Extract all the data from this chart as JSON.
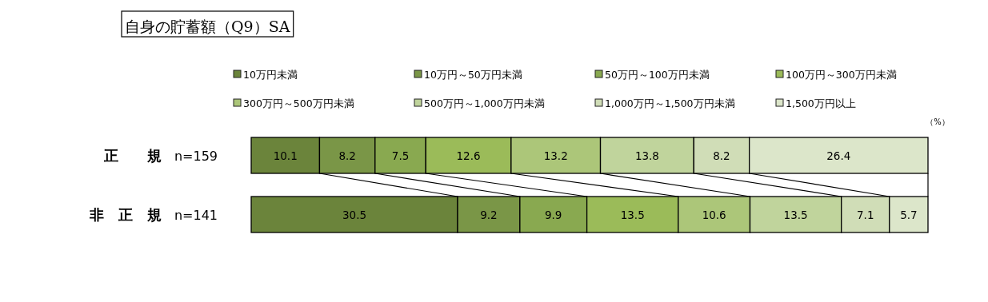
{
  "chart_data": {
    "type": "bar",
    "orientation": "horizontal",
    "stacked": true,
    "title": "自身の貯蓄額（Q9）SA",
    "categories": [
      "**正　　規**　n=159",
      "**非　正　規**　n=141"
    ],
    "series": [
      {
        "name": "10万円未満",
        "color": "#6b843b",
        "values": [
          10.1,
          30.5
        ]
      },
      {
        "name": "10万円～50万円未満",
        "color": "#7a9647",
        "values": [
          8.2,
          9.2
        ]
      },
      {
        "name": "50万円～100万円未満",
        "color": "#89a950",
        "values": [
          7.5,
          9.9
        ]
      },
      {
        "name": "100万円～300万円未満",
        "color": "#9bbb59",
        "values": [
          12.6,
          13.5
        ]
      },
      {
        "name": "300万円～500万円未満",
        "color": "#acc679",
        "values": [
          13.2,
          10.6
        ]
      },
      {
        "name": "500万円～1,000万円未満",
        "color": "#c0d49c",
        "values": [
          13.8,
          13.5
        ]
      },
      {
        "name": "1,000万円～1,500万円未満",
        "color": "#d0ddb7",
        "values": [
          8.2,
          7.1
        ]
      },
      {
        "name": "1,500万円以上",
        "color": "#dce6ca",
        "values": [
          26.4,
          5.7
        ]
      }
    ],
    "data_labels": true,
    "legend": "top",
    "annotations": [
      "（%）"
    ]
  }
}
